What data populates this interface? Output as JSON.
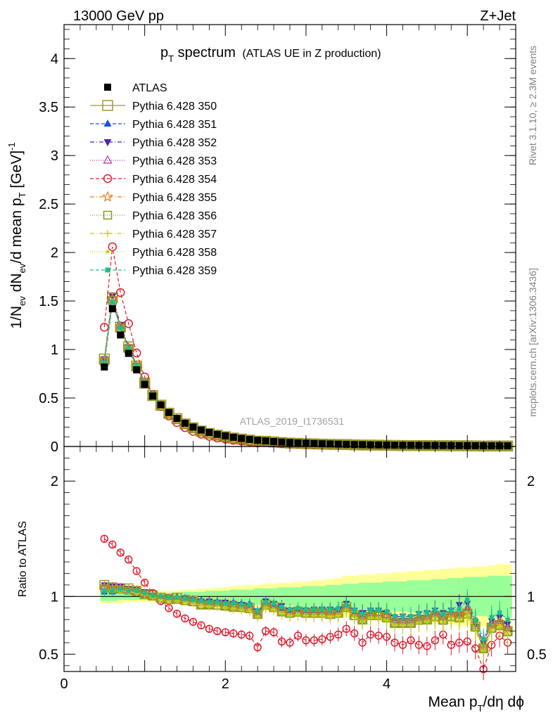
{
  "header": {
    "left": "13000 GeV pp",
    "right": "Z+Jet"
  },
  "title": {
    "main": "p",
    "main_sub": "T",
    "main_rest": " spectrum",
    "aside": "(ATLAS UE in Z production)"
  },
  "ylabel_top": {
    "a": "1/N",
    "a_sub": "ev",
    "b": " dN",
    "b_sub": "ev",
    "c": "/d mean p",
    "c_sub": "T",
    "d": " [GeV]",
    "d_sup": "-1"
  },
  "ylabel_bottom": "Ratio to ATLAS",
  "xlabel": {
    "a": "Mean p",
    "a_sub": "T",
    "b": "/dη dϕ"
  },
  "watermark": "ATLAS_2019_I1736531",
  "side_texts": {
    "rivet": "Rivet 3.1.10, ≥ 2.3M events",
    "mcplots": "mcplots.cern.ch [arXiv:1306.3436]"
  },
  "top_ticks": [
    "0",
    "0.5",
    "1",
    "1.5",
    "2",
    "2.5",
    "3",
    "3.5",
    "4"
  ],
  "bottom_ticks": [
    "0.5",
    "1",
    "2"
  ],
  "x_ticks": [
    "0",
    "2",
    "4"
  ],
  "legend": [
    {
      "label": "ATLAS",
      "color": "#000000",
      "marker": "square-filled",
      "dash": "none"
    },
    {
      "label": "Pythia 6.428 350",
      "color": "#9a9a2a",
      "marker": "square-open-large",
      "dash": "solid"
    },
    {
      "label": "Pythia 6.428 351",
      "color": "#1d4fd8",
      "marker": "triangle-up-filled",
      "dash": "5,3"
    },
    {
      "label": "Pythia 6.428 352",
      "color": "#4b22b8",
      "marker": "triangle-down-filled",
      "dash": "6,3,1,3"
    },
    {
      "label": "Pythia 6.428 353",
      "color": "#b0309c",
      "marker": "triangle-up-open",
      "dash": "1,2"
    },
    {
      "label": "Pythia 6.428 354",
      "color": "#dd1c2c",
      "marker": "circle-open",
      "dash": "5,3"
    },
    {
      "label": "Pythia 6.428 355",
      "color": "#f07a1c",
      "marker": "star",
      "dash": "6,3,1,3"
    },
    {
      "label": "Pythia 6.428 356",
      "color": "#8a9a1c",
      "marker": "square-open",
      "dash": "1,2"
    },
    {
      "label": "Pythia 6.428 357",
      "color": "#d4c81c",
      "marker": "cross-small",
      "dash": "6,3,1,3"
    },
    {
      "label": "Pythia 6.428 358",
      "color": "#b8d41c",
      "marker": "dot",
      "dash": "1,2"
    },
    {
      "label": "Pythia 6.428 359",
      "color": "#1cc08c",
      "marker": "square-filled-small",
      "dash": "5,3"
    }
  ],
  "chart_data": {
    "type": "line",
    "xlim": [
      0,
      5.6
    ],
    "ylim_top": [
      0,
      4.35
    ],
    "ylim_ratio": [
      0.35,
      2.3
    ],
    "ratio_band_outer_color": "#ffff99",
    "ratio_band_inner_color": "#99ff99",
    "x": [
      0.5,
      0.6,
      0.7,
      0.8,
      0.9,
      1.0,
      1.1,
      1.2,
      1.3,
      1.4,
      1.5,
      1.6,
      1.7,
      1.8,
      1.9,
      2.0,
      2.1,
      2.2,
      2.3,
      2.4,
      2.5,
      2.6,
      2.7,
      2.8,
      2.9,
      3.0,
      3.1,
      3.2,
      3.3,
      3.4,
      3.5,
      3.6,
      3.7,
      3.8,
      3.9,
      4.0,
      4.1,
      4.2,
      4.3,
      4.4,
      4.5,
      4.6,
      4.7,
      4.8,
      4.9,
      5.0,
      5.1,
      5.2,
      5.3,
      5.4,
      5.5
    ],
    "atlas": [
      0.82,
      1.42,
      1.15,
      0.96,
      0.79,
      0.64,
      0.52,
      0.43,
      0.35,
      0.29,
      0.24,
      0.2,
      0.17,
      0.145,
      0.125,
      0.11,
      0.095,
      0.083,
      0.073,
      0.064,
      0.057,
      0.051,
      0.046,
      0.041,
      0.037,
      0.034,
      0.031,
      0.028,
      0.026,
      0.024,
      0.022,
      0.02,
      0.019,
      0.017,
      0.016,
      0.015,
      0.014,
      0.013,
      0.012,
      0.0115,
      0.011,
      0.0105,
      0.01,
      0.0095,
      0.009,
      0.0085,
      0.008,
      0.0078,
      0.0075,
      0.0072,
      0.007
    ],
    "band_outer": [
      0.06,
      0.06,
      0.06,
      0.05,
      0.05,
      0.05,
      0.05,
      0.05,
      0.05,
      0.05,
      0.06,
      0.06,
      0.07,
      0.07,
      0.08,
      0.08,
      0.09,
      0.09,
      0.1,
      0.1,
      0.11,
      0.11,
      0.12,
      0.12,
      0.13,
      0.13,
      0.14,
      0.14,
      0.15,
      0.16,
      0.18,
      0.18,
      0.19,
      0.19,
      0.2,
      0.2,
      0.21,
      0.21,
      0.22,
      0.22,
      0.23,
      0.23,
      0.24,
      0.24,
      0.25,
      0.25,
      0.26,
      0.26,
      0.27,
      0.28,
      0.28
    ],
    "band_inner": [
      0.04,
      0.04,
      0.03,
      0.03,
      0.03,
      0.03,
      0.03,
      0.03,
      0.03,
      0.03,
      0.04,
      0.04,
      0.04,
      0.05,
      0.05,
      0.05,
      0.06,
      0.06,
      0.06,
      0.07,
      0.07,
      0.07,
      0.08,
      0.08,
      0.08,
      0.09,
      0.09,
      0.09,
      0.1,
      0.1,
      0.11,
      0.11,
      0.12,
      0.12,
      0.12,
      0.13,
      0.13,
      0.13,
      0.14,
      0.14,
      0.14,
      0.15,
      0.15,
      0.16,
      0.16,
      0.17,
      0.17,
      0.17,
      0.18,
      0.18,
      0.18
    ],
    "series": [
      {
        "ratio": [
          1.1,
          1.08,
          1.07,
          1.07,
          1.05,
          1.02,
          1.01,
          0.99,
          0.98,
          0.99,
          0.97,
          0.96,
          0.93,
          0.93,
          0.93,
          0.92,
          0.91,
          0.91,
          0.9,
          0.85,
          0.93,
          0.91,
          0.87,
          0.86,
          0.87,
          0.86,
          0.86,
          0.86,
          0.85,
          0.86,
          0.91,
          0.84,
          0.8,
          0.84,
          0.84,
          0.82,
          0.77,
          0.77,
          0.77,
          0.8,
          0.8,
          0.83,
          0.8,
          0.83,
          0.82,
          0.85,
          0.74,
          0.55,
          0.73,
          0.75,
          0.7
        ]
      },
      {
        "ratio": [
          1.04,
          1.04,
          1.07,
          1.07,
          1.06,
          1.03,
          1.02,
          1.0,
          0.99,
          1.0,
          0.99,
          0.98,
          0.97,
          0.96,
          0.96,
          0.95,
          0.95,
          0.94,
          0.94,
          0.86,
          0.95,
          0.93,
          0.9,
          0.88,
          0.89,
          0.88,
          0.88,
          0.88,
          0.88,
          0.89,
          0.93,
          0.87,
          0.84,
          0.87,
          0.88,
          0.86,
          0.81,
          0.81,
          0.81,
          0.83,
          0.84,
          0.86,
          0.84,
          0.87,
          0.85,
          0.9,
          0.77,
          0.6,
          0.78,
          0.8,
          0.75
        ]
      },
      {
        "ratio": [
          1.1,
          1.09,
          1.09,
          1.07,
          1.06,
          1.04,
          1.01,
          0.99,
          0.99,
          0.98,
          0.98,
          0.97,
          0.96,
          0.96,
          0.95,
          0.95,
          0.94,
          0.93,
          0.92,
          0.87,
          0.96,
          0.94,
          0.92,
          0.88,
          0.88,
          0.88,
          0.89,
          0.89,
          0.89,
          0.88,
          0.94,
          0.88,
          0.86,
          0.88,
          0.88,
          0.86,
          0.82,
          0.83,
          0.82,
          0.85,
          0.86,
          0.88,
          0.86,
          0.88,
          0.93,
          0.94,
          0.78,
          0.6,
          0.79,
          0.82,
          0.76
        ]
      },
      {
        "ratio": [
          1.09,
          1.08,
          1.08,
          1.06,
          1.05,
          1.03,
          1.01,
          0.99,
          0.98,
          0.98,
          0.97,
          0.96,
          0.95,
          0.95,
          0.94,
          0.93,
          0.93,
          0.92,
          0.91,
          0.86,
          0.94,
          0.92,
          0.9,
          0.87,
          0.87,
          0.87,
          0.87,
          0.87,
          0.87,
          0.87,
          0.92,
          0.86,
          0.83,
          0.86,
          0.86,
          0.84,
          0.8,
          0.8,
          0.8,
          0.82,
          0.83,
          0.86,
          0.83,
          0.86,
          0.87,
          0.9,
          0.76,
          0.58,
          0.76,
          0.79,
          0.73
        ]
      },
      {
        "ratio": [
          1.5,
          1.45,
          1.38,
          1.32,
          1.22,
          1.12,
          1.03,
          0.96,
          0.9,
          0.85,
          0.81,
          0.78,
          0.75,
          0.72,
          0.7,
          0.69,
          0.68,
          0.67,
          0.66,
          0.56,
          0.7,
          0.69,
          0.61,
          0.6,
          0.66,
          0.62,
          0.62,
          0.63,
          0.65,
          0.67,
          0.72,
          0.68,
          0.6,
          0.67,
          0.66,
          0.65,
          0.6,
          0.58,
          0.62,
          0.58,
          0.57,
          0.62,
          0.67,
          0.58,
          0.6,
          0.61,
          0.55,
          0.37,
          0.58,
          0.66,
          0.6
        ]
      },
      {
        "ratio": [
          1.08,
          1.07,
          1.07,
          1.06,
          1.05,
          1.02,
          1.0,
          0.99,
          0.98,
          0.98,
          0.97,
          0.96,
          0.94,
          0.94,
          0.94,
          0.93,
          0.92,
          0.91,
          0.9,
          0.85,
          0.94,
          0.92,
          0.89,
          0.87,
          0.87,
          0.87,
          0.87,
          0.87,
          0.86,
          0.87,
          0.91,
          0.85,
          0.82,
          0.85,
          0.85,
          0.83,
          0.79,
          0.79,
          0.79,
          0.81,
          0.82,
          0.85,
          0.82,
          0.85,
          0.84,
          0.88,
          0.75,
          0.57,
          0.75,
          0.78,
          0.72
        ]
      },
      {
        "ratio": [
          1.07,
          1.06,
          1.06,
          1.05,
          1.04,
          1.02,
          1.0,
          0.98,
          0.97,
          0.97,
          0.96,
          0.95,
          0.93,
          0.93,
          0.92,
          0.92,
          0.91,
          0.9,
          0.89,
          0.84,
          0.92,
          0.9,
          0.87,
          0.85,
          0.86,
          0.85,
          0.85,
          0.85,
          0.84,
          0.85,
          0.9,
          0.83,
          0.8,
          0.83,
          0.83,
          0.81,
          0.77,
          0.77,
          0.77,
          0.79,
          0.8,
          0.82,
          0.79,
          0.82,
          0.81,
          0.85,
          0.73,
          0.55,
          0.72,
          0.75,
          0.69
        ]
      },
      {
        "ratio": [
          1.05,
          1.05,
          1.05,
          1.04,
          1.03,
          1.01,
          0.99,
          0.97,
          0.96,
          0.96,
          0.95,
          0.94,
          0.92,
          0.91,
          0.91,
          0.9,
          0.89,
          0.88,
          0.87,
          0.82,
          0.9,
          0.88,
          0.85,
          0.83,
          0.84,
          0.83,
          0.83,
          0.83,
          0.82,
          0.83,
          0.88,
          0.82,
          0.78,
          0.81,
          0.81,
          0.79,
          0.75,
          0.75,
          0.75,
          0.77,
          0.78,
          0.8,
          0.77,
          0.8,
          0.79,
          0.82,
          0.71,
          0.53,
          0.7,
          0.73,
          0.67
        ]
      },
      {
        "ratio": [
          1.06,
          1.06,
          1.06,
          1.05,
          1.04,
          1.02,
          1.0,
          0.98,
          0.97,
          0.97,
          0.96,
          0.95,
          0.93,
          0.92,
          0.92,
          0.91,
          0.9,
          0.89,
          0.88,
          0.83,
          0.91,
          0.89,
          0.86,
          0.84,
          0.85,
          0.84,
          0.84,
          0.84,
          0.83,
          0.84,
          0.89,
          0.83,
          0.79,
          0.82,
          0.82,
          0.8,
          0.76,
          0.76,
          0.76,
          0.78,
          0.79,
          0.81,
          0.78,
          0.81,
          0.8,
          0.83,
          0.72,
          0.54,
          0.71,
          0.74,
          0.68
        ]
      },
      {
        "ratio": [
          1.05,
          1.05,
          1.06,
          1.05,
          1.05,
          1.03,
          1.01,
          1.0,
          0.99,
          0.99,
          0.98,
          0.97,
          0.96,
          0.95,
          0.95,
          0.94,
          0.94,
          0.93,
          0.93,
          0.88,
          0.95,
          0.94,
          0.91,
          0.89,
          0.9,
          0.89,
          0.89,
          0.89,
          0.89,
          0.9,
          0.93,
          0.88,
          0.85,
          0.88,
          0.88,
          0.87,
          0.83,
          0.83,
          0.83,
          0.85,
          0.86,
          0.88,
          0.85,
          0.88,
          0.89,
          0.97,
          0.8,
          0.63,
          0.82,
          0.86,
          0.8
        ]
      }
    ]
  }
}
